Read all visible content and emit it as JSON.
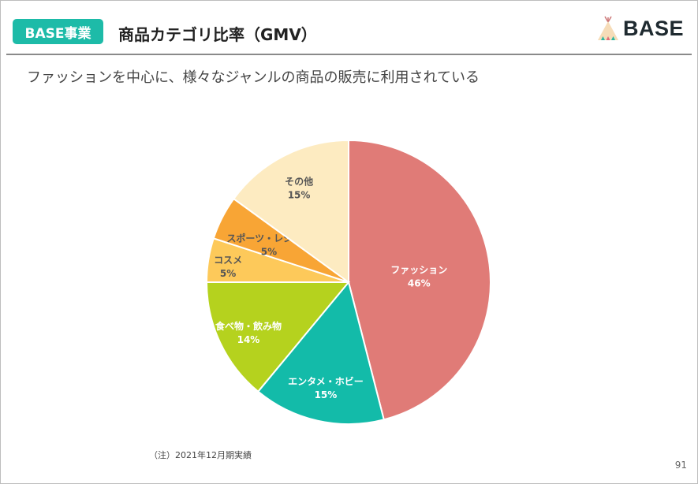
{
  "header": {
    "badge": "BASE事業",
    "title": "商品カテゴリ比率（GMV）",
    "logo": "BASE"
  },
  "subtitle": "ファッションを中心に、様々なジャンルの商品の販売に利用されている",
  "chart_data": {
    "type": "pie",
    "categories": [
      "ファッション",
      "エンタメ・ホビー",
      "食べ物・飲み物",
      "コスメ",
      "スポーツ・レジャー",
      "その他"
    ],
    "values": [
      46,
      15,
      14,
      5,
      5,
      15
    ],
    "value_labels": [
      "46%",
      "15%",
      "14%",
      "5%",
      "5%",
      "15%"
    ],
    "colors": [
      "#e07b77",
      "#13bba9",
      "#b5d21e",
      "#fdc95a",
      "#f8a535",
      "#fdebc1"
    ],
    "label_colors": [
      "#ffffff",
      "#ffffff",
      "#ffffff",
      "#555555",
      "#555555",
      "#555555"
    ],
    "start": "top",
    "direction": "clockwise",
    "legend": "none"
  },
  "footer": {
    "note": "（注）2021年12月期実績",
    "page_number": "91"
  }
}
